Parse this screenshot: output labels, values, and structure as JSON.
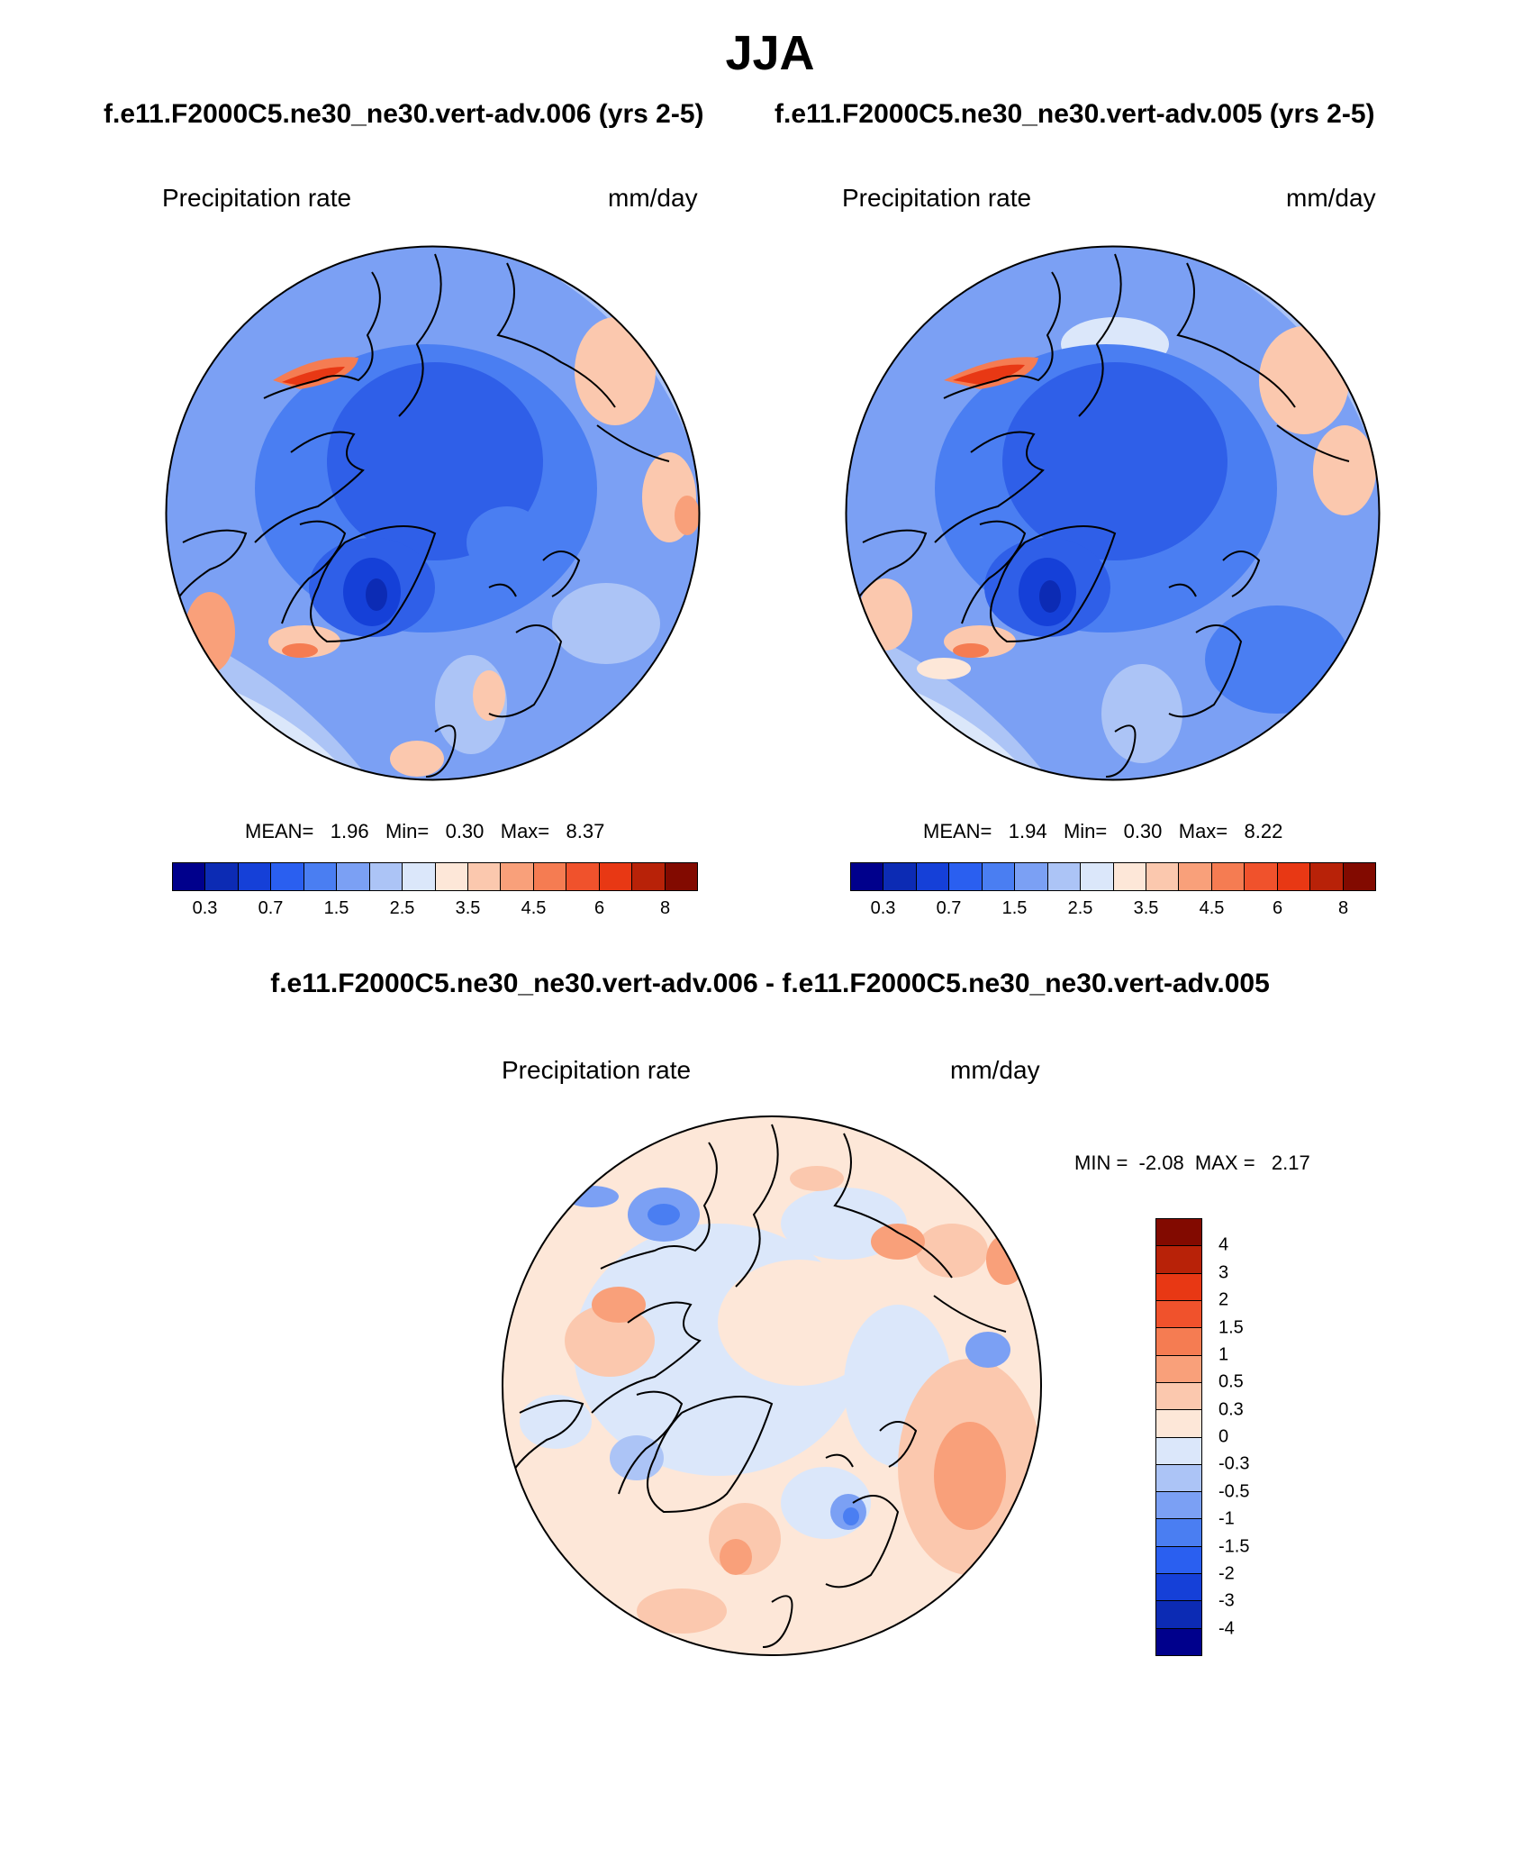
{
  "figure": {
    "title": "JJA",
    "case1_header": "f.e11.F2000C5.ne30_ne30.vert-adv.006 (yrs 2-5)",
    "case2_header": "f.e11.F2000C5.ne30_ne30.vert-adv.005 (yrs 2-5)",
    "diff_header": "f.e11.F2000C5.ne30_ne30.vert-adv.006 - f.e11.F2000C5.ne30_ne30.vert-adv.005"
  },
  "panels": [
    {
      "id": "case1",
      "variable": "Precipitation rate",
      "units": "mm/day",
      "stats": {
        "mean_label": "MEAN=",
        "mean": "1.96",
        "min_label": "Min=",
        "min": "0.30",
        "max_label": "Max=",
        "max": "8.37"
      }
    },
    {
      "id": "case2",
      "variable": "Precipitation rate",
      "units": "mm/day",
      "stats": {
        "mean_label": "MEAN=",
        "mean": "1.94",
        "min_label": "Min=",
        "min": "0.30",
        "max_label": "Max=",
        "max": "8.22"
      }
    },
    {
      "id": "diff",
      "variable": "Precipitation rate",
      "units": "mm/day",
      "stats": {
        "min_label": "MIN =",
        "min": "-2.08",
        "max_label": "MAX =",
        "max": "2.17"
      }
    }
  ],
  "abs_colorbar": {
    "labels": [
      "0.3",
      "0.7",
      "1.5",
      "2.5",
      "3.5",
      "4.5",
      "6",
      "8"
    ],
    "colors": [
      "#00008c",
      "#0c2bb4",
      "#1540d8",
      "#2a5ff0",
      "#4a7ef2",
      "#7ba0f4",
      "#acc4f6",
      "#dbe7fa",
      "#fde7d8",
      "#fbc8ae",
      "#f9a07a",
      "#f57c52",
      "#f0522c",
      "#e83814",
      "#b82208",
      "#820a00"
    ]
  },
  "diff_colorbar": {
    "labels": [
      "4",
      "3",
      "2",
      "1.5",
      "1",
      "0.5",
      "0.3",
      "0",
      "-0.3",
      "-0.5",
      "-1",
      "-1.5",
      "-2",
      "-3",
      "-4"
    ],
    "colors": [
      "#820a00",
      "#b82208",
      "#e83814",
      "#f0522c",
      "#f57c52",
      "#f9a07a",
      "#fbc8ae",
      "#fde7d8",
      "#dbe7fa",
      "#acc4f6",
      "#7ba0f4",
      "#4a7ef2",
      "#2a5ff0",
      "#1540d8",
      "#0c2bb4",
      "#00008c"
    ]
  },
  "map_palette": {
    "deep_blue": "#2f5fe8",
    "mid_blue": "#4a7ef2",
    "light_blue": "#7ba0f4",
    "pale_blue": "#acc4f6",
    "very_pale_blue": "#dbe7fa",
    "pale_orange": "#fde7d8",
    "light_orange": "#fbc8ae",
    "orange": "#f9a07a",
    "red": "#f0522c",
    "dark_blue": "#1540d8"
  }
}
